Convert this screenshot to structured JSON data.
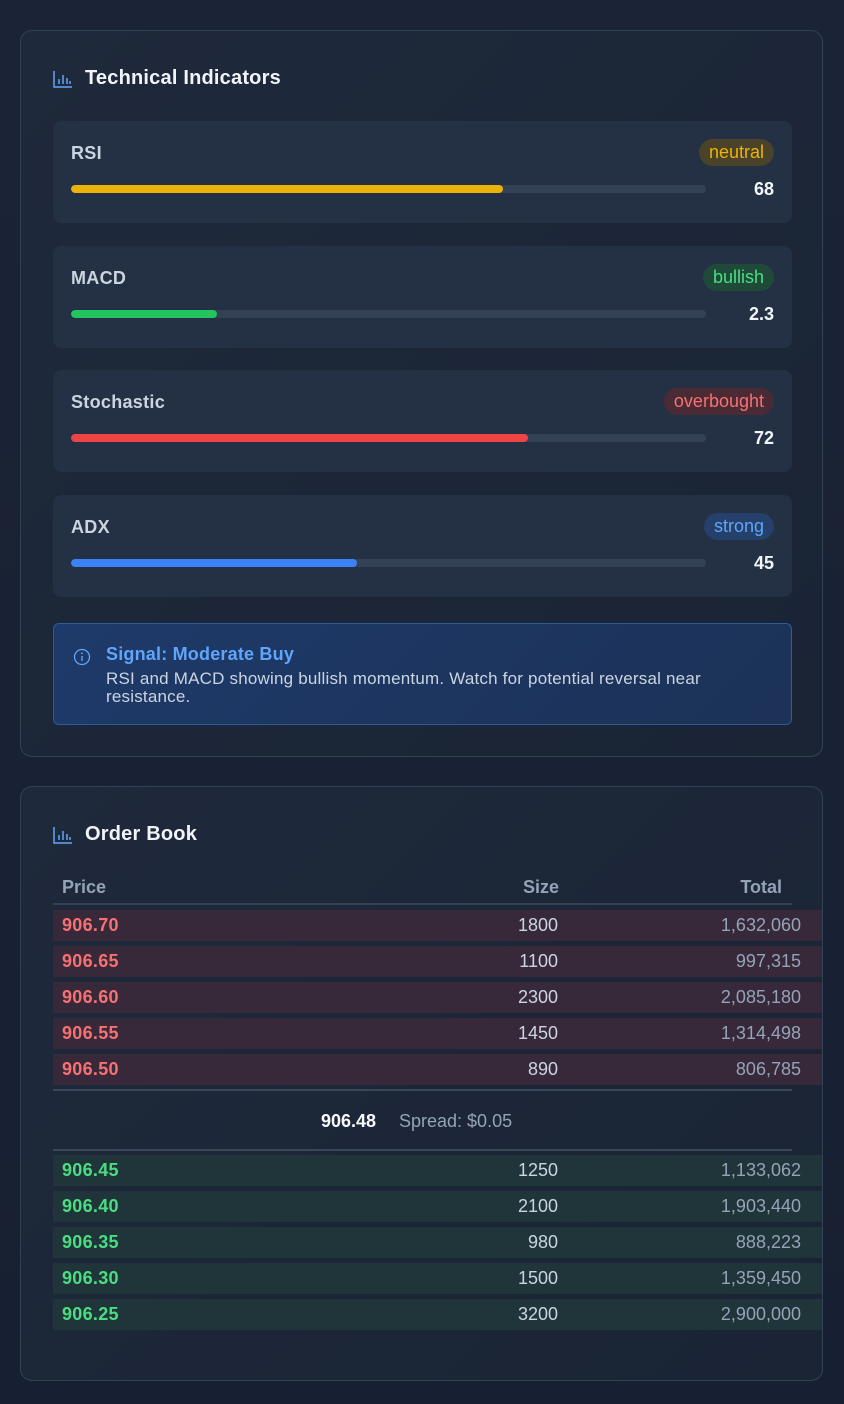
{
  "technical": {
    "title": "Technical Indicators",
    "indicators": [
      {
        "name": "RSI",
        "status": "neutral",
        "value": "68",
        "level": 0.68,
        "color": "#eab308",
        "badge_bg": "#4a4229",
        "badge_fg": "#eab308"
      },
      {
        "name": "MACD",
        "status": "bullish",
        "value": "2.3",
        "level": 0.23,
        "color": "#22c55e",
        "badge_bg": "#1f4a39",
        "badge_fg": "#4ade80"
      },
      {
        "name": "Stochastic",
        "status": "overbought",
        "value": "72",
        "level": 0.72,
        "color": "#ef4444",
        "badge_bg": "#4a2a35",
        "badge_fg": "#f87171"
      },
      {
        "name": "ADX",
        "status": "strong",
        "value": "45",
        "level": 0.45,
        "color": "#3b82f6",
        "badge_bg": "#24406b",
        "badge_fg": "#60a5fa"
      }
    ],
    "signal": {
      "title": "Signal: Moderate Buy",
      "text": "RSI and MACD showing bullish momentum. Watch for potential reversal near resistance."
    }
  },
  "order_book": {
    "title": "Order Book",
    "columns": {
      "price": "Price",
      "size": "Size",
      "total": "Total"
    },
    "asks": [
      {
        "price": "906.70",
        "size": "1800",
        "total": "1,632,060"
      },
      {
        "price": "906.65",
        "size": "1100",
        "total": "997,315"
      },
      {
        "price": "906.60",
        "size": "2300",
        "total": "2,085,180"
      },
      {
        "price": "906.55",
        "size": "1450",
        "total": "1,314,498"
      },
      {
        "price": "906.50",
        "size": "890",
        "total": "806,785"
      }
    ],
    "mid_price": "906.48",
    "spread": "Spread: $0.05",
    "bids": [
      {
        "price": "906.45",
        "size": "1250",
        "total": "1,133,062"
      },
      {
        "price": "906.40",
        "size": "2100",
        "total": "1,903,440"
      },
      {
        "price": "906.35",
        "size": "980",
        "total": "888,223"
      },
      {
        "price": "906.30",
        "size": "1500",
        "total": "1,359,450"
      },
      {
        "price": "906.25",
        "size": "3200",
        "total": "2,900,000"
      }
    ]
  },
  "icons": {
    "header": "bar-chart-icon",
    "signal": "info-icon"
  }
}
